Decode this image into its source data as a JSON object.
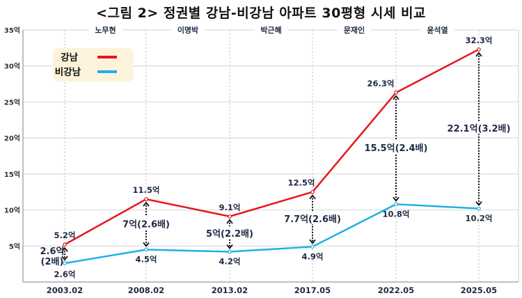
{
  "title": "<그림 2> 정권별 강남-비강남 아파트 30평형 시세 비교",
  "chart_data": {
    "type": "line",
    "title": "<그림 2> 정권별 강남-비강남 아파트 30평형 시세 비교",
    "categories": [
      "2003.02",
      "2008.02",
      "2013.02",
      "2017.05",
      "2022.05",
      "2025.05"
    ],
    "periods": [
      "노무현",
      "이명박",
      "박근혜",
      "문재인",
      "윤석열"
    ],
    "yticks": [
      "5억",
      "10억",
      "15억",
      "20억",
      "25억",
      "30억",
      "35억"
    ],
    "ylim": [
      0,
      35
    ],
    "grid": true,
    "legend_position": "top-left",
    "series": [
      {
        "name": "강남",
        "color": "#e8141b",
        "values": [
          5.2,
          11.5,
          9.1,
          12.5,
          26.3,
          32.3
        ],
        "labels": [
          "5.2억",
          "11.5억",
          "9.1억",
          "12.5억",
          "26.3억",
          "32.3억"
        ]
      },
      {
        "name": "비강남",
        "color": "#1fb0e6",
        "values": [
          2.6,
          4.5,
          4.2,
          4.9,
          10.8,
          10.2
        ],
        "labels": [
          "2.6억",
          "4.5억",
          "4.2억",
          "4.9억",
          "10.8억",
          "10.2억"
        ]
      }
    ],
    "gap_annotations": [
      "2.6억\n(2배)",
      "7억(2.6배)",
      "5억(2.2배)",
      "7.7억(2.6배)",
      "15.5억(2.4배)",
      "22.1억(3.2배)"
    ]
  }
}
